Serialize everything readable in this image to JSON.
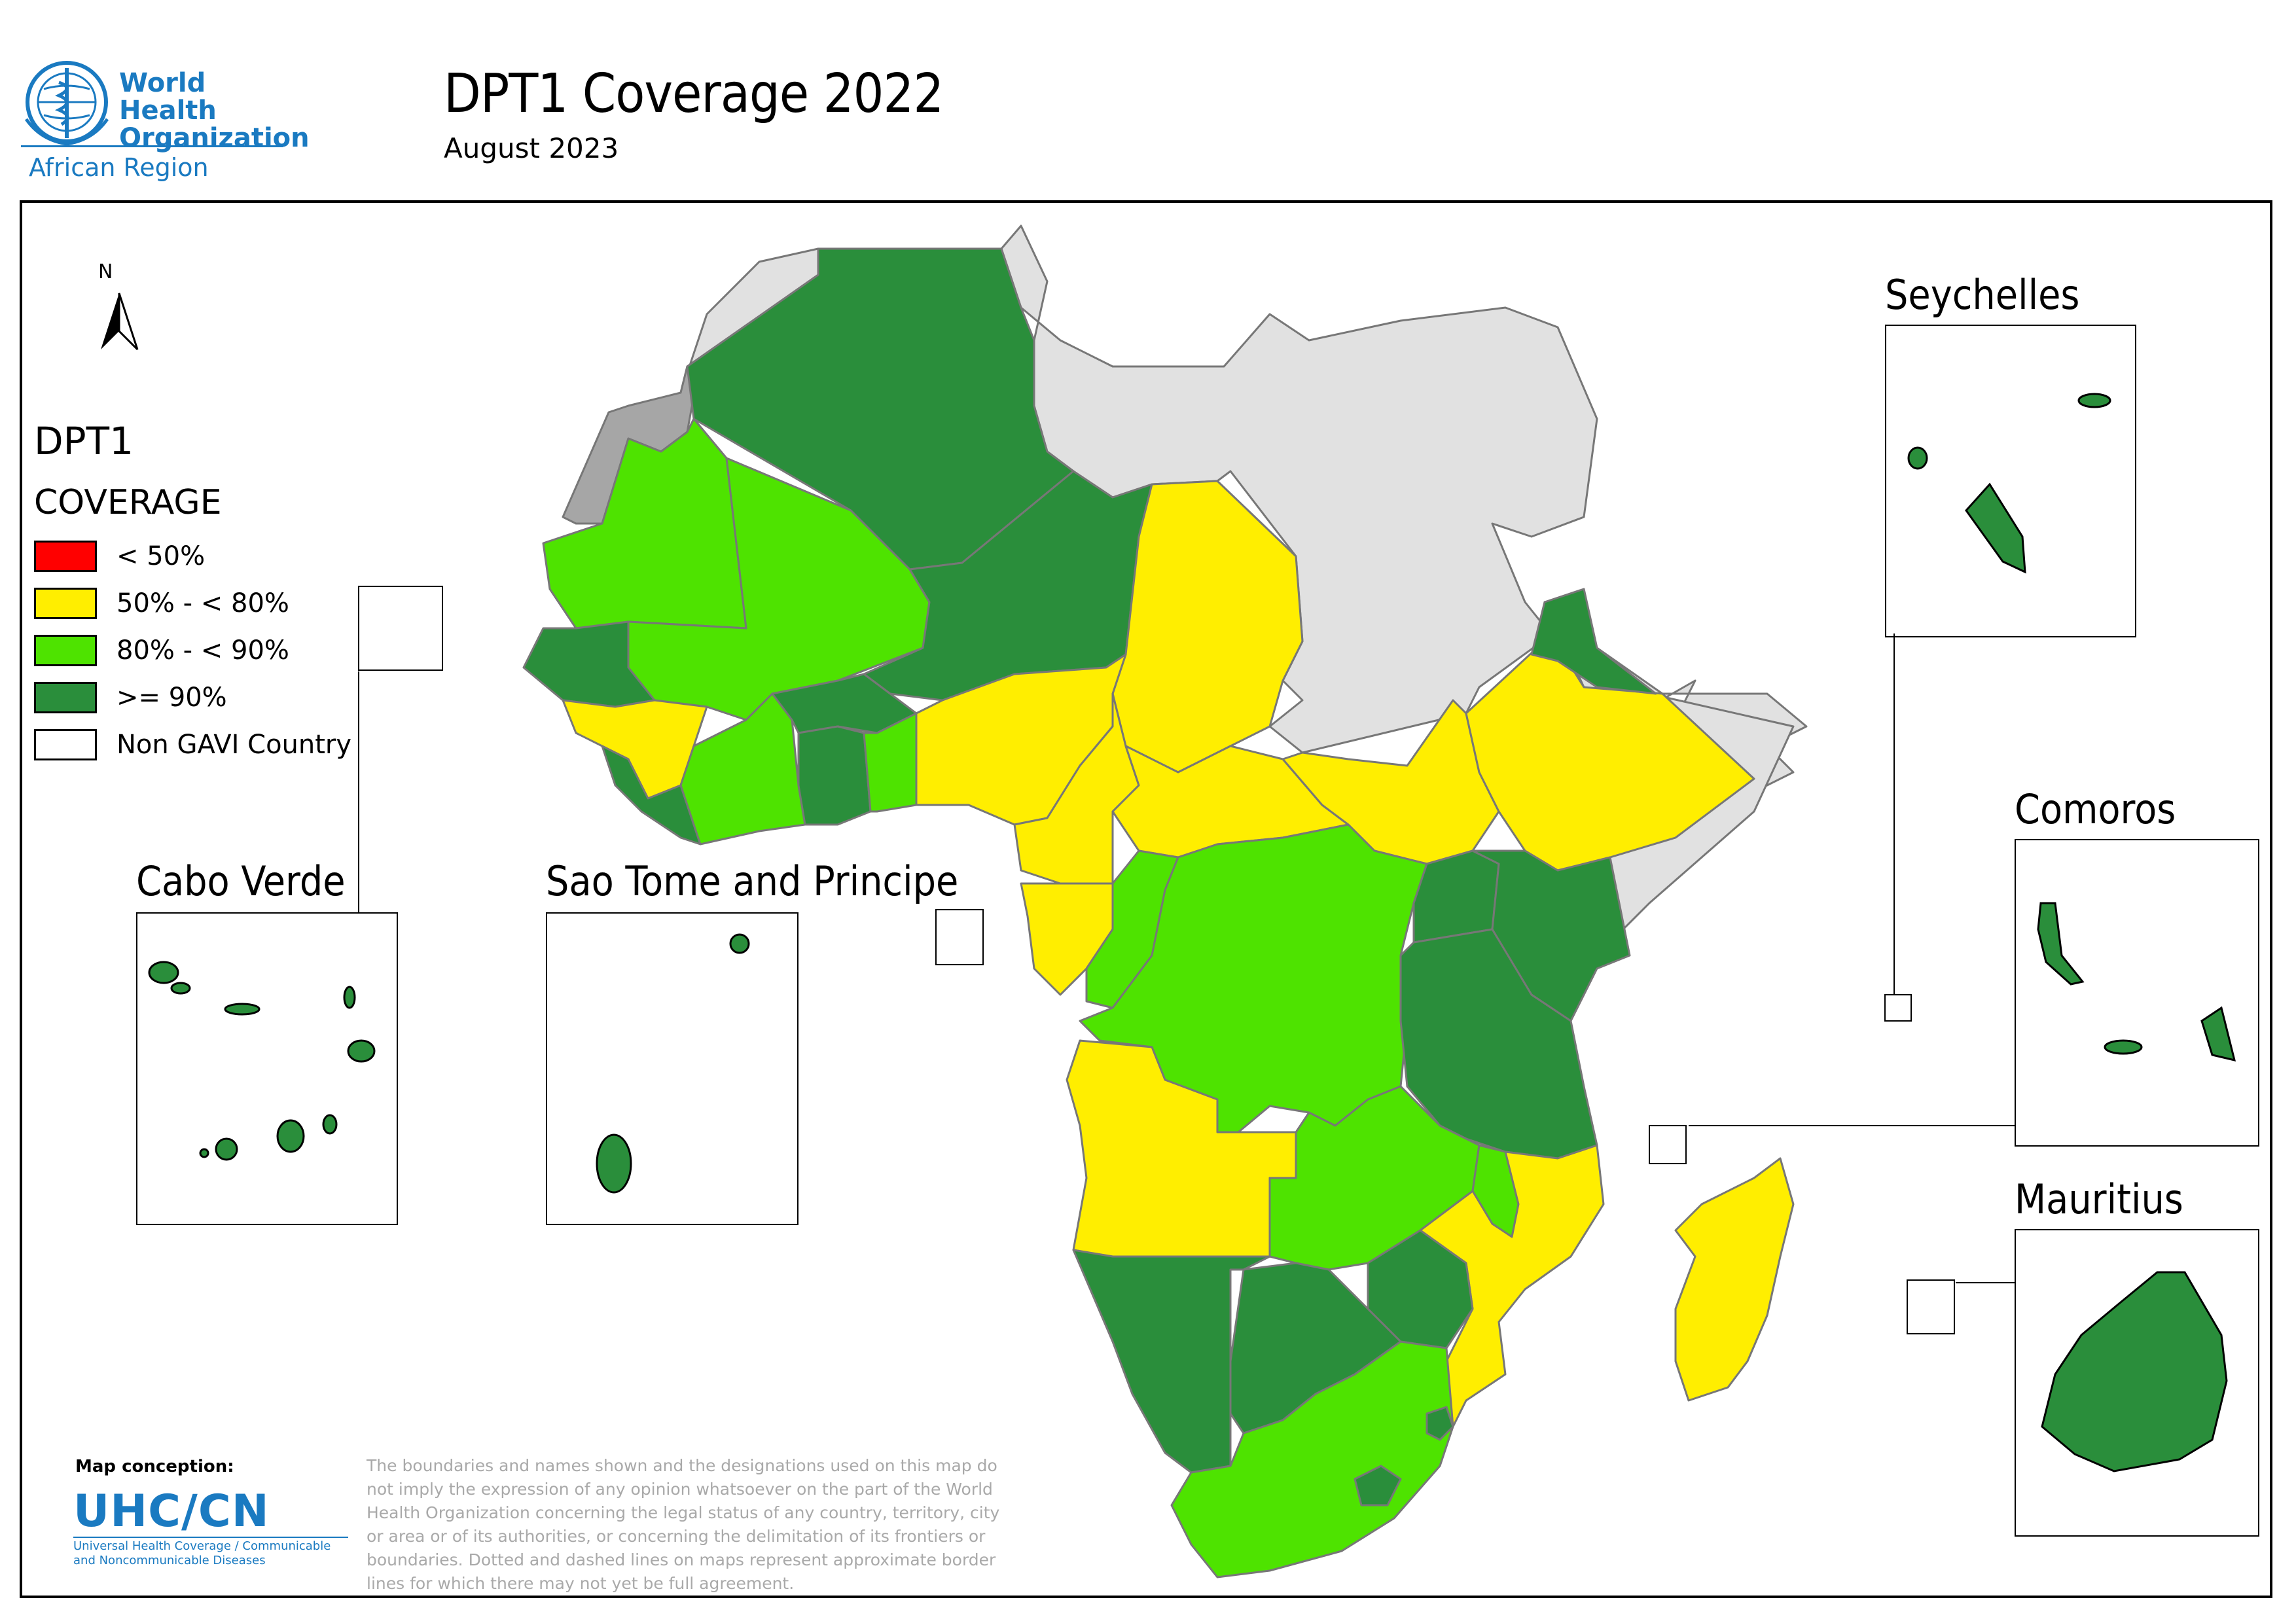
{
  "header": {
    "org_name": "World Health Organization",
    "org_name_line1": "World Health",
    "org_name_line2": "Organization",
    "org_region": "African Region",
    "title": "DPT1 Coverage 2022",
    "subtitle": "August 2023"
  },
  "legend": {
    "title": "DPT1",
    "subtitle": "COVERAGE",
    "items": [
      {
        "label": "< 50%",
        "color": "#ff0000"
      },
      {
        "label": "50% - < 80%",
        "color": "#ffee00"
      },
      {
        "label": "80% - < 90%",
        "color": "#4ee300"
      },
      {
        "label": ">= 90%",
        "color": "#2a8e3b"
      },
      {
        "label": "Non GAVI Country",
        "color": "#ffffff"
      }
    ]
  },
  "north_label": "N",
  "insets": {
    "cabo_verde": "Cabo Verde",
    "sao_tome": "Sao Tome and Principe",
    "seychelles": "Seychelles",
    "comoros": "Comoros",
    "mauritius": "Mauritius"
  },
  "credit": {
    "title": "Map conception:",
    "org": "UHC/CN",
    "line1": "Universal Health Coverage / Communicable",
    "line2": "and Noncommunicable Diseases"
  },
  "disclaimer": "The boundaries and names shown and the designations used on this map do not imply the expression of any opinion whatsoever on the part of the World Health Organization concerning the legal status of any country, territory, city or area or of its authorities, or concerning the delimitation of its frontiers or boundaries. Dotted and dashed lines on maps represent approximate border lines for which there may not yet be full agreement.",
  "colors": {
    "lt50": "#ff0000",
    "c50_80": "#ffee00",
    "c80_90": "#4ee300",
    "ge90": "#2a8e3b",
    "non_gavi_map": "#e1e1e1",
    "western_sahara": "#a6a6a6",
    "who_blue": "#1a7ac1"
  }
}
